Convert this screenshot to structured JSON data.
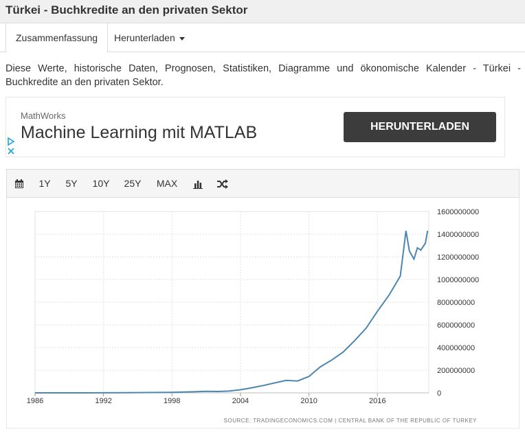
{
  "page": {
    "title": "Türkei - Buchkredite an den privaten Sektor"
  },
  "tabs": [
    {
      "label": "Zusammenfassung"
    },
    {
      "label": "Herunterladen"
    }
  ],
  "description": "Diese Werte, historische Daten, Prognosen, Statistiken, Diagramme und ökonomische Kalender - Türkei - Buchkredite an den privaten Sektor.",
  "ad": {
    "brand": "MathWorks",
    "headline": "Machine Learning mit MATLAB",
    "button": "HERUNTERLADEN",
    "icons": [
      "adchoices-play-icon",
      "close-icon"
    ]
  },
  "toolbar": {
    "icons": [
      "calendar-icon",
      "bar-chart-icon",
      "shuffle-icon"
    ],
    "ranges": [
      "1Y",
      "5Y",
      "10Y",
      "25Y",
      "MAX"
    ]
  },
  "chart_data": {
    "type": "line",
    "title": "",
    "xlabel": "",
    "ylabel": "",
    "x_ticks": [
      "1986",
      "1992",
      "1998",
      "2004",
      "2010",
      "2016"
    ],
    "y_ticks": [
      "1600000000",
      "1400000000",
      "1200000000",
      "1000000000",
      "800000000",
      "600000000",
      "400000000",
      "200000000",
      "0"
    ],
    "xlim": [
      1986,
      2020.5
    ],
    "ylim": [
      0,
      1600000000
    ],
    "grid": true,
    "line_color": "#4a86ad",
    "source": "SOURCE: TRADINGECONOMICS.COM | CENTRAL BANK OF THE REPUBLIC OF TURKEY",
    "series": [
      {
        "x": [
          1986,
          1990,
          1994,
          1998,
          2000,
          2001,
          2002,
          2003,
          2004,
          2005,
          2006,
          2007,
          2008,
          2009,
          2010,
          2011,
          2012,
          2013,
          2014,
          2015,
          2016,
          2017,
          2018,
          2018.5,
          2018.8,
          2019.2,
          2019.5,
          2019.8,
          2020.2,
          2020.4
        ],
        "y": [
          0,
          0,
          1000000,
          5000000,
          10000000,
          14000000,
          12000000,
          16000000,
          27000000,
          45000000,
          65000000,
          88000000,
          110000000,
          105000000,
          145000000,
          230000000,
          290000000,
          360000000,
          460000000,
          570000000,
          720000000,
          860000000,
          1030000000,
          1430000000,
          1250000000,
          1180000000,
          1280000000,
          1260000000,
          1320000000,
          1430000000
        ]
      }
    ]
  }
}
